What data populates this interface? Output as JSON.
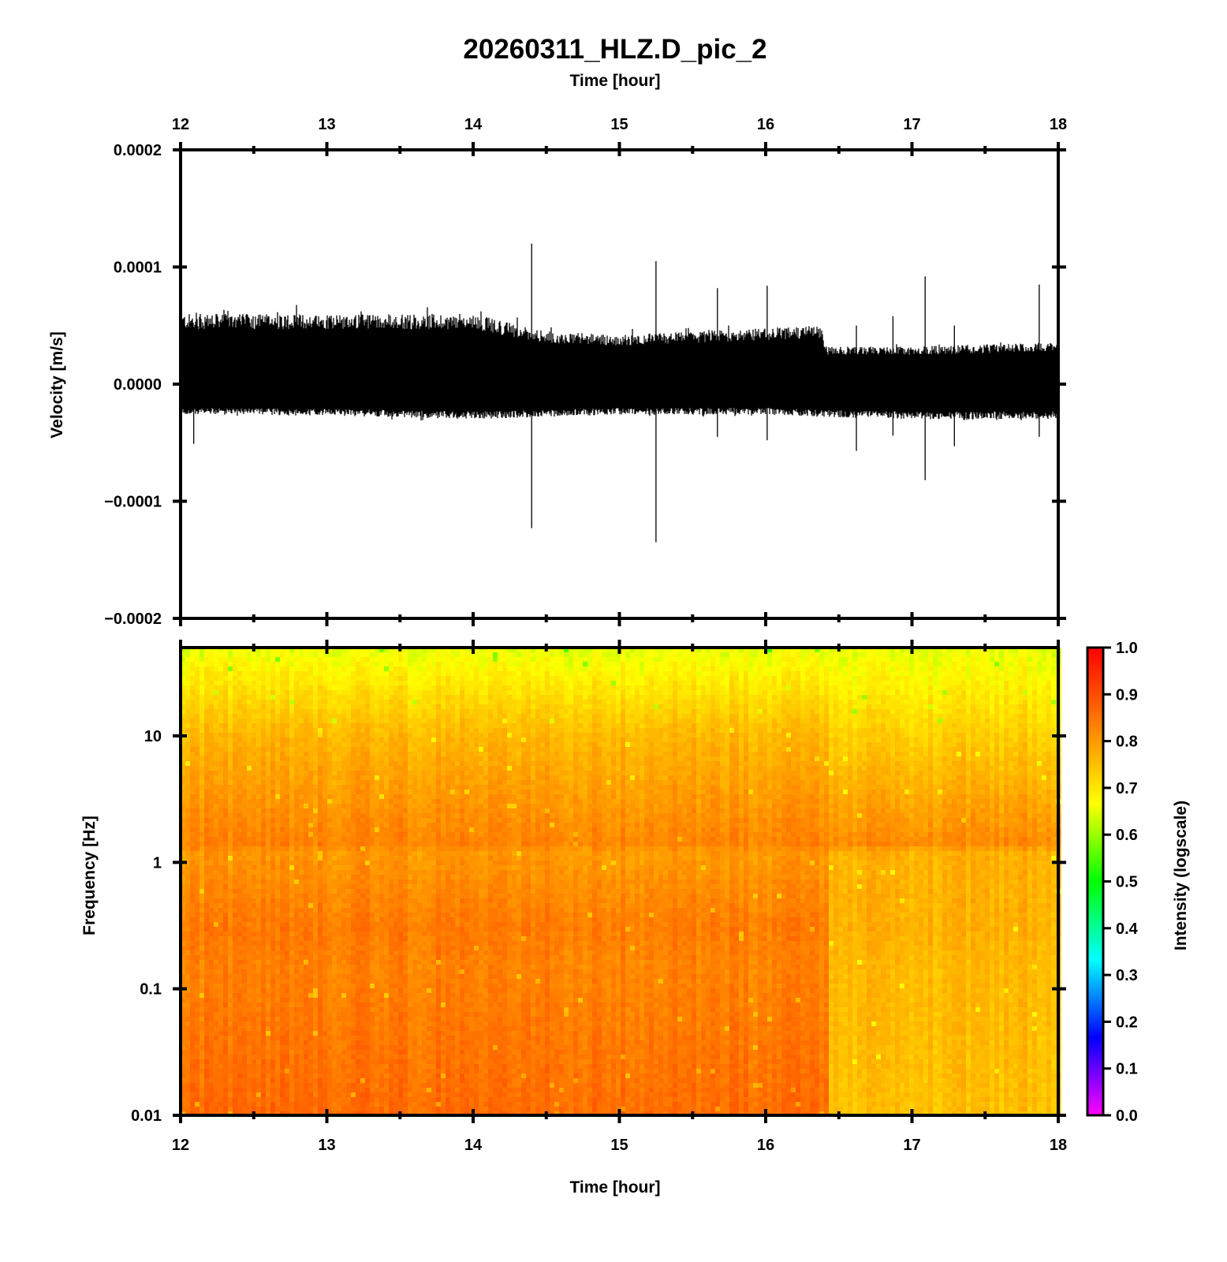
{
  "chart_data": [
    {
      "type": "line",
      "panel": "waveform",
      "title": "20260311_HLZ.D_pic_2",
      "top_xlabel": "Time [hour]",
      "xlabel": "",
      "ylabel": "Velocity [m/s]",
      "xlim": [
        12,
        18
      ],
      "ylim": [
        -0.0002,
        0.0002
      ],
      "x_ticks": [
        "12",
        "13",
        "14",
        "15",
        "16",
        "17",
        "18"
      ],
      "y_ticks": [
        {
          "value": 0.0002,
          "label": "0.0002"
        },
        {
          "value": 0.0001,
          "label": "0.0001"
        },
        {
          "value": 0.0,
          "label": "0.0000"
        },
        {
          "value": -0.0001,
          "label": "−0.0001"
        },
        {
          "value": -0.0002,
          "label": "−0.0002"
        }
      ],
      "line_color": "#000000",
      "noise_envelope": [
        {
          "time": 12.0,
          "upper": 6e-05,
          "lower": -2.6e-05
        },
        {
          "time": 13.0,
          "upper": 6e-05,
          "lower": -2.7e-05
        },
        {
          "time": 14.0,
          "upper": 6e-05,
          "lower": -3e-05
        },
        {
          "time": 14.5,
          "upper": 4.5e-05,
          "lower": -2.8e-05
        },
        {
          "time": 15.0,
          "upper": 4.2e-05,
          "lower": -2.6e-05
        },
        {
          "time": 16.0,
          "upper": 4.8e-05,
          "lower": -2.6e-05
        },
        {
          "time": 16.39,
          "upper": 5e-05,
          "lower": -2.8e-05
        },
        {
          "time": 16.4,
          "upper": 3.2e-05,
          "lower": -2.8e-05
        },
        {
          "time": 17.0,
          "upper": 3.2e-05,
          "lower": -3e-05
        },
        {
          "time": 18.0,
          "upper": 3.6e-05,
          "lower": -3e-05
        }
      ],
      "spikes": [
        {
          "time": 12.09,
          "max": 4e-05,
          "min": -5.1e-05
        },
        {
          "time": 14.4,
          "max": 0.00012,
          "min": -0.000123
        },
        {
          "time": 15.25,
          "max": 0.000105,
          "min": -0.000135
        },
        {
          "time": 15.67,
          "max": 8.2e-05,
          "min": -4.5e-05
        },
        {
          "time": 16.01,
          "max": 8.4e-05,
          "min": -4.8e-05
        },
        {
          "time": 16.62,
          "max": 5e-05,
          "min": -5.7e-05
        },
        {
          "time": 16.87,
          "max": 5.8e-05,
          "min": -4.4e-05
        },
        {
          "time": 17.09,
          "max": 9.2e-05,
          "min": -8.2e-05
        },
        {
          "time": 17.29,
          "max": 5e-05,
          "min": -5.3e-05
        },
        {
          "time": 17.87,
          "max": 8.5e-05,
          "min": -4.5e-05
        }
      ]
    },
    {
      "type": "heatmap",
      "panel": "spectrogram",
      "title": "",
      "xlabel": "Time [hour]",
      "ylabel": "Frequency [Hz]",
      "xlim": [
        12,
        18
      ],
      "ylim": [
        0.01,
        50
      ],
      "yscale": "log",
      "x_ticks": [
        "12",
        "13",
        "14",
        "15",
        "16",
        "17",
        "18"
      ],
      "y_ticks": [
        {
          "value": 10,
          "label": "10"
        },
        {
          "value": 1,
          "label": "1"
        },
        {
          "value": 0.1,
          "label": "0.1"
        },
        {
          "value": 0.01,
          "label": "0.01"
        }
      ],
      "regime_change_time": 16.4,
      "intensity_profile": {
        "frequencies": [
          50,
          10,
          1.4,
          1.2,
          0.3,
          0.15,
          0.01
        ],
        "before_change": [
          0.65,
          0.76,
          0.83,
          0.8,
          0.84,
          0.83,
          0.86
        ],
        "after_change": [
          0.65,
          0.73,
          0.82,
          0.77,
          0.77,
          0.76,
          0.75
        ]
      },
      "colorbar": {
        "label": "Intensity (logscale)",
        "range": [
          0.0,
          1.0
        ],
        "ticks": [
          "1.0",
          "0.9",
          "0.8",
          "0.7",
          "0.6",
          "0.5",
          "0.4",
          "0.3",
          "0.2",
          "0.1",
          "0.0"
        ],
        "colors": [
          "#ff00ff",
          "#0000ff",
          "#00ffff",
          "#00ff00",
          "#ffff00",
          "#ff8000",
          "#ff0000"
        ]
      }
    }
  ]
}
